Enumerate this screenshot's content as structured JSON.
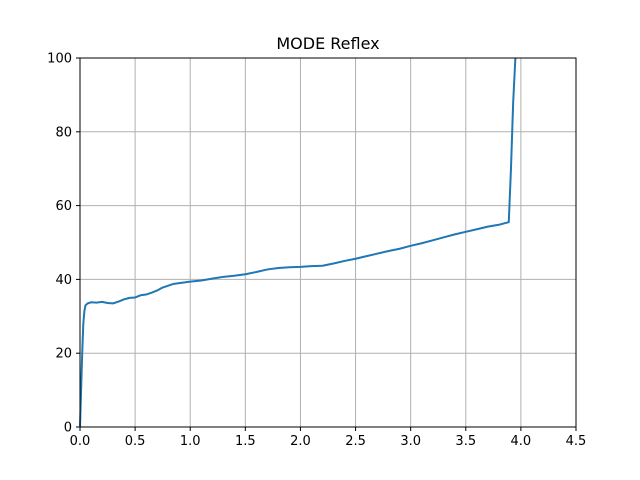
{
  "chart_data": {
    "type": "line",
    "title": "MODE Reflex",
    "xlabel": "",
    "ylabel": "",
    "xlim": [
      0.0,
      4.5
    ],
    "ylim": [
      0,
      100
    ],
    "grid": true,
    "xticks": [
      "0.0",
      "0.5",
      "1.0",
      "1.5",
      "2.0",
      "2.5",
      "3.0",
      "3.5",
      "4.0",
      "4.5"
    ],
    "yticks": [
      "0",
      "20",
      "40",
      "60",
      "80",
      "100"
    ],
    "xtick_values": [
      0.0,
      0.5,
      1.0,
      1.5,
      2.0,
      2.5,
      3.0,
      3.5,
      4.0,
      4.5
    ],
    "ytick_values": [
      0,
      20,
      40,
      60,
      80,
      100
    ],
    "series": [
      {
        "name": "MODE Reflex",
        "color": "#1f77b4",
        "x": [
          0.0,
          0.01,
          0.02,
          0.03,
          0.04,
          0.05,
          0.07,
          0.1,
          0.15,
          0.2,
          0.25,
          0.3,
          0.35,
          0.4,
          0.45,
          0.5,
          0.55,
          0.6,
          0.65,
          0.7,
          0.75,
          0.8,
          0.85,
          0.9,
          0.95,
          1.0,
          1.1,
          1.2,
          1.3,
          1.4,
          1.5,
          1.6,
          1.7,
          1.8,
          1.9,
          2.0,
          2.1,
          2.2,
          2.3,
          2.4,
          2.5,
          2.6,
          2.7,
          2.8,
          2.9,
          3.0,
          3.1,
          3.2,
          3.3,
          3.4,
          3.5,
          3.6,
          3.7,
          3.8,
          3.85,
          3.89,
          3.91,
          3.93,
          3.95
        ],
        "y": [
          0.0,
          10.0,
          20.0,
          28.0,
          31.5,
          33.0,
          33.5,
          33.8,
          33.7,
          33.9,
          33.6,
          33.5,
          34.0,
          34.6,
          35.0,
          35.1,
          35.7,
          35.9,
          36.4,
          37.0,
          37.8,
          38.3,
          38.8,
          39.0,
          39.2,
          39.4,
          39.7,
          40.2,
          40.7,
          41.0,
          41.4,
          42.0,
          42.7,
          43.1,
          43.3,
          43.4,
          43.6,
          43.7,
          44.3,
          45.0,
          45.6,
          46.3,
          47.0,
          47.7,
          48.3,
          49.1,
          49.8,
          50.6,
          51.4,
          52.2,
          52.9,
          53.6,
          54.3,
          54.8,
          55.2,
          55.5,
          70.0,
          88.0,
          100.0
        ]
      }
    ]
  }
}
